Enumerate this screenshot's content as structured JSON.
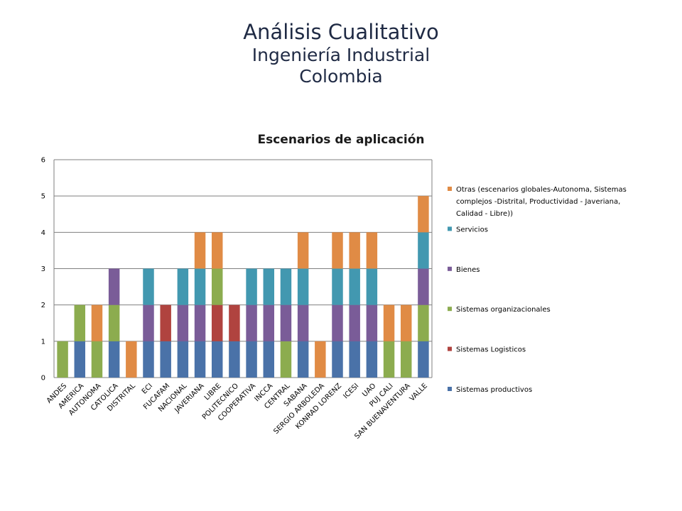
{
  "page": {
    "title": "Análisis Cualitativo",
    "subtitle1": "Ingeniería Industrial",
    "subtitle2": "Colombia"
  },
  "chart_data": {
    "type": "bar",
    "stacked": true,
    "title": "Escenarios de aplicación",
    "xlabel": "",
    "ylabel": "",
    "ylim": [
      0,
      6
    ],
    "yticks": [
      0,
      1,
      2,
      3,
      4,
      5,
      6
    ],
    "grid": true,
    "legend_position": "right",
    "categories": [
      "ANDES",
      "AMERICA",
      "AUTONOMA",
      "CATOLICA",
      "DISTRITAL",
      "ECI",
      "FUCAFAM",
      "NACIONAL",
      "JAVERIANA",
      "LIBRE",
      "POLITECNICO",
      "COOPERATIVA",
      "INCCA",
      "CENTRAL",
      "SABANA",
      "SERGIO ARBOLEDA",
      "KONRAD LORENZ",
      "ICESI",
      "UAO",
      "PUJ CALI",
      "SAN BUENAVENTURA",
      "VALLE"
    ],
    "series": [
      {
        "name": "Sistemas productivos",
        "color": "#4a72a8",
        "values": [
          0,
          1,
          0,
          1,
          0,
          1,
          1,
          1,
          1,
          1,
          1,
          1,
          1,
          0,
          1,
          0,
          1,
          1,
          1,
          0,
          0,
          1
        ]
      },
      {
        "name": "Sistemas Logisticos",
        "color": "#b0433f",
        "values": [
          0,
          0,
          0,
          0,
          0,
          0,
          1,
          0,
          0,
          1,
          1,
          0,
          0,
          0,
          0,
          0,
          0,
          0,
          0,
          0,
          0,
          0
        ]
      },
      {
        "name": "Sistemas organizacionales",
        "color": "#8cac4f",
        "values": [
          1,
          1,
          1,
          1,
          0,
          0,
          0,
          0,
          0,
          1,
          0,
          0,
          0,
          1,
          0,
          0,
          0,
          0,
          0,
          1,
          1,
          1
        ]
      },
      {
        "name": "Bienes",
        "color": "#7a5c98",
        "values": [
          0,
          0,
          0,
          1,
          0,
          1,
          0,
          1,
          1,
          0,
          0,
          1,
          1,
          1,
          1,
          0,
          1,
          1,
          1,
          0,
          0,
          1
        ]
      },
      {
        "name": "Servicios",
        "color": "#4298b0",
        "values": [
          0,
          0,
          0,
          0,
          0,
          1,
          0,
          1,
          1,
          0,
          0,
          1,
          1,
          1,
          1,
          0,
          1,
          1,
          1,
          0,
          0,
          1
        ]
      },
      {
        "name": "Otras (escenarios globales-Autonoma, Sistemas complejos -Distrital, Productividad - Javeriana, Calidad - Libre))",
        "color": "#e08b45",
        "values": [
          0,
          0,
          1,
          0,
          1,
          0,
          0,
          0,
          1,
          1,
          0,
          0,
          0,
          0,
          1,
          1,
          1,
          1,
          1,
          1,
          1,
          1
        ]
      }
    ],
    "legend_lines": [
      [
        "Otras (escenarios globales-Autonoma, Sistemas",
        "complejos -Distrital, Productividad - Javeriana,",
        "Calidad - Libre))"
      ],
      [
        "Servicios"
      ],
      [
        "Bienes"
      ],
      [
        "Sistemas organizacionales"
      ],
      [
        "Sistemas Logisticos"
      ],
      [
        "Sistemas productivos"
      ]
    ]
  }
}
